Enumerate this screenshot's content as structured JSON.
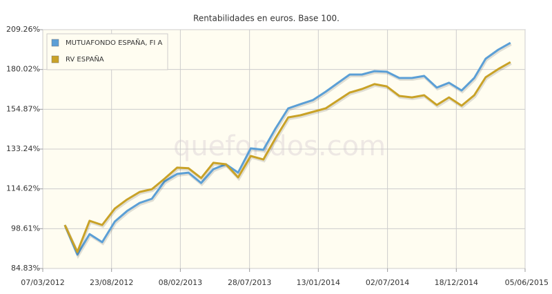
{
  "chart_data": {
    "type": "line",
    "title": "Rentabilidades en euros. Base 100.",
    "watermark": "quefondos.com",
    "log_scale": true,
    "grid": true,
    "legend": "top-left",
    "x": [
      "30/04/2012",
      "31/05/2012",
      "30/06/2012",
      "31/07/2012",
      "31/08/2012",
      "30/09/2012",
      "31/10/2012",
      "30/11/2012",
      "31/12/2012",
      "31/01/2013",
      "28/02/2013",
      "31/03/2013",
      "30/04/2013",
      "31/05/2013",
      "30/06/2013",
      "31/07/2013",
      "31/08/2013",
      "30/09/2013",
      "31/10/2013",
      "30/11/2013",
      "31/12/2013",
      "31/01/2014",
      "28/02/2014",
      "31/03/2014",
      "30/04/2014",
      "31/05/2014",
      "30/06/2014",
      "31/07/2014",
      "31/08/2014",
      "30/09/2014",
      "31/10/2014",
      "30/11/2014",
      "31/12/2014",
      "31/01/2015",
      "28/02/2015",
      "31/03/2015",
      "30/04/2015"
    ],
    "xlim": [
      "07/03/2012",
      "05/06/2015"
    ],
    "xticks": [
      "07/03/2012",
      "23/08/2012",
      "08/02/2013",
      "28/07/2013",
      "13/01/2014",
      "02/07/2014",
      "18/12/2014",
      "05/06/2015"
    ],
    "ylim": [
      84.83,
      209.26
    ],
    "yticks": [
      {
        "value": 84.83,
        "label": "84.83%"
      },
      {
        "value": 98.61,
        "label": "98.61%"
      },
      {
        "value": 114.62,
        "label": "114.62%"
      },
      {
        "value": 133.24,
        "label": "133.24%"
      },
      {
        "value": 154.87,
        "label": "154.87%"
      },
      {
        "value": 180.02,
        "label": "180.02%"
      },
      {
        "value": 209.26,
        "label": "209.26%"
      }
    ],
    "series": [
      {
        "name": "MUTUAFONDO ESPAÑA, FI A",
        "color": "#5b9fd6",
        "values": [
          100,
          89.4,
          96.6,
          93.7,
          101.3,
          105.4,
          108.7,
          110.4,
          117.9,
          121.3,
          121.9,
          117.2,
          123.5,
          125.8,
          121.9,
          133.6,
          132.9,
          144.1,
          155.4,
          157.9,
          160.4,
          165.5,
          170.7,
          176.6,
          176.6,
          178.9,
          178.5,
          174.3,
          174.3,
          175.7,
          168.1,
          171.2,
          166.3,
          174.3,
          187.5,
          194.0,
          199.1
        ]
      },
      {
        "name": "RV ESPAÑA",
        "color": "#c9a227",
        "values": [
          100,
          90.3,
          101.6,
          100.0,
          106.4,
          110.1,
          113.3,
          114.5,
          119.1,
          124.2,
          123.9,
          119.4,
          126.5,
          125.8,
          119.7,
          129.8,
          128.1,
          138.9,
          150.2,
          151.4,
          153.4,
          155.4,
          159.9,
          165.0,
          167.2,
          170.3,
          168.9,
          162.9,
          162.0,
          163.3,
          157.4,
          162.0,
          157.0,
          163.3,
          174.8,
          180.3,
          185.1
        ]
      }
    ]
  }
}
